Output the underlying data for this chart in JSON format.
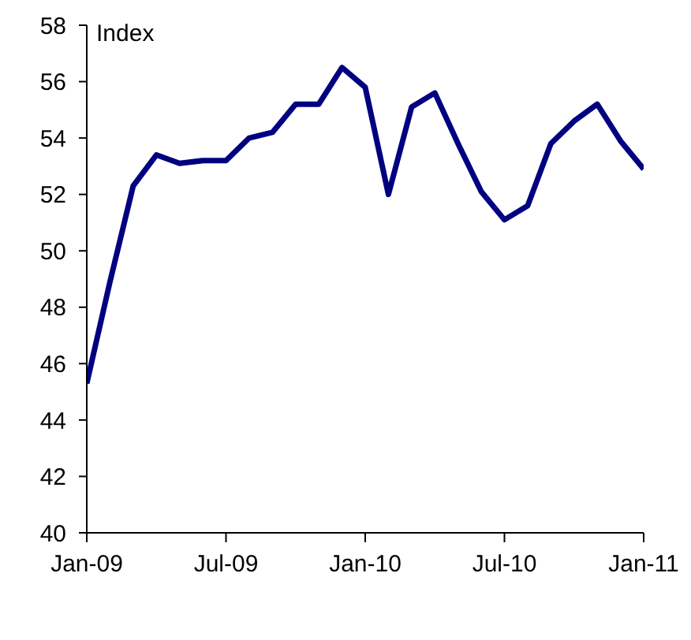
{
  "chart_data": {
    "type": "line",
    "ylabel": "Index",
    "x": [
      "2009-01",
      "2009-02",
      "2009-03",
      "2009-04",
      "2009-05",
      "2009-06",
      "2009-07",
      "2009-08",
      "2009-09",
      "2009-10",
      "2009-11",
      "2009-12",
      "2010-01",
      "2010-02",
      "2010-03",
      "2010-04",
      "2010-05",
      "2010-06",
      "2010-07",
      "2010-08",
      "2010-09",
      "2010-10",
      "2010-11",
      "2010-12",
      "2011-01"
    ],
    "series": [
      {
        "color": "#000080",
        "values": [
          45.3,
          48.9,
          52.3,
          53.4,
          53.1,
          53.2,
          53.2,
          54.0,
          54.2,
          55.2,
          55.2,
          56.5,
          55.8,
          52.0,
          55.1,
          55.6,
          53.8,
          52.1,
          51.1,
          51.6,
          53.8,
          54.6,
          55.2,
          53.9,
          52.9
        ]
      }
    ],
    "xlim": [
      "2009-01",
      "2011-01"
    ],
    "xticks": [
      {
        "value": "2009-01",
        "label": "Jan-09"
      },
      {
        "value": "2009-07",
        "label": "Jul-09"
      },
      {
        "value": "2010-01",
        "label": "Jan-10"
      },
      {
        "value": "2010-07",
        "label": "Jul-10"
      },
      {
        "value": "2011-01",
        "label": "Jan-11"
      }
    ],
    "ylim": [
      40,
      58
    ],
    "yticks": [
      40,
      42,
      44,
      46,
      48,
      50,
      52,
      54,
      56,
      58
    ],
    "grid": false,
    "legend": false,
    "marker": "none",
    "line_style": "solid"
  }
}
